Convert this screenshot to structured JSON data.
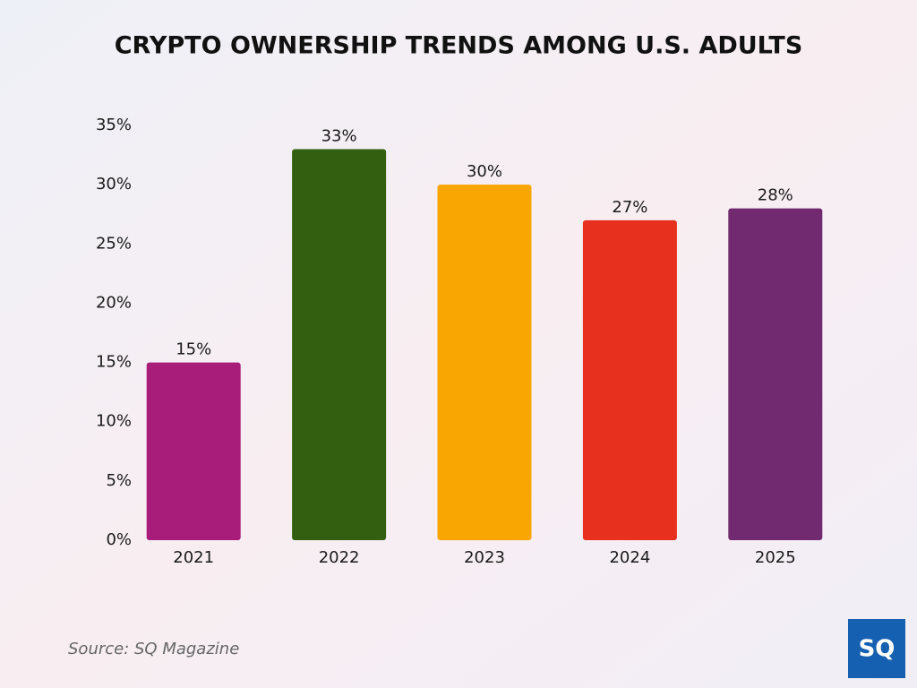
{
  "chart_data": {
    "type": "bar",
    "title": "CRYPTO OWNERSHIP TRENDS AMONG U.S. ADULTS",
    "categories": [
      "2021",
      "2022",
      "2023",
      "2024",
      "2025"
    ],
    "values": [
      15,
      33,
      30,
      27,
      28
    ],
    "value_labels": [
      "15%",
      "33%",
      "30%",
      "27%",
      "28%"
    ],
    "colors": [
      "#a81c7a",
      "#336010",
      "#f9a602",
      "#e8301f",
      "#71296f"
    ],
    "ylim": [
      0,
      35
    ],
    "yticks": [
      {
        "value": 0,
        "label": "0%"
      },
      {
        "value": 5,
        "label": "5%"
      },
      {
        "value": 10,
        "label": "10%"
      },
      {
        "value": 15,
        "label": "15%"
      },
      {
        "value": 20,
        "label": "20%"
      },
      {
        "value": 25,
        "label": "25%"
      },
      {
        "value": 30,
        "label": "30%"
      },
      {
        "value": 35,
        "label": "35%"
      }
    ],
    "grid": false,
    "source": "Source: SQ Magazine"
  },
  "logo": "SQ"
}
